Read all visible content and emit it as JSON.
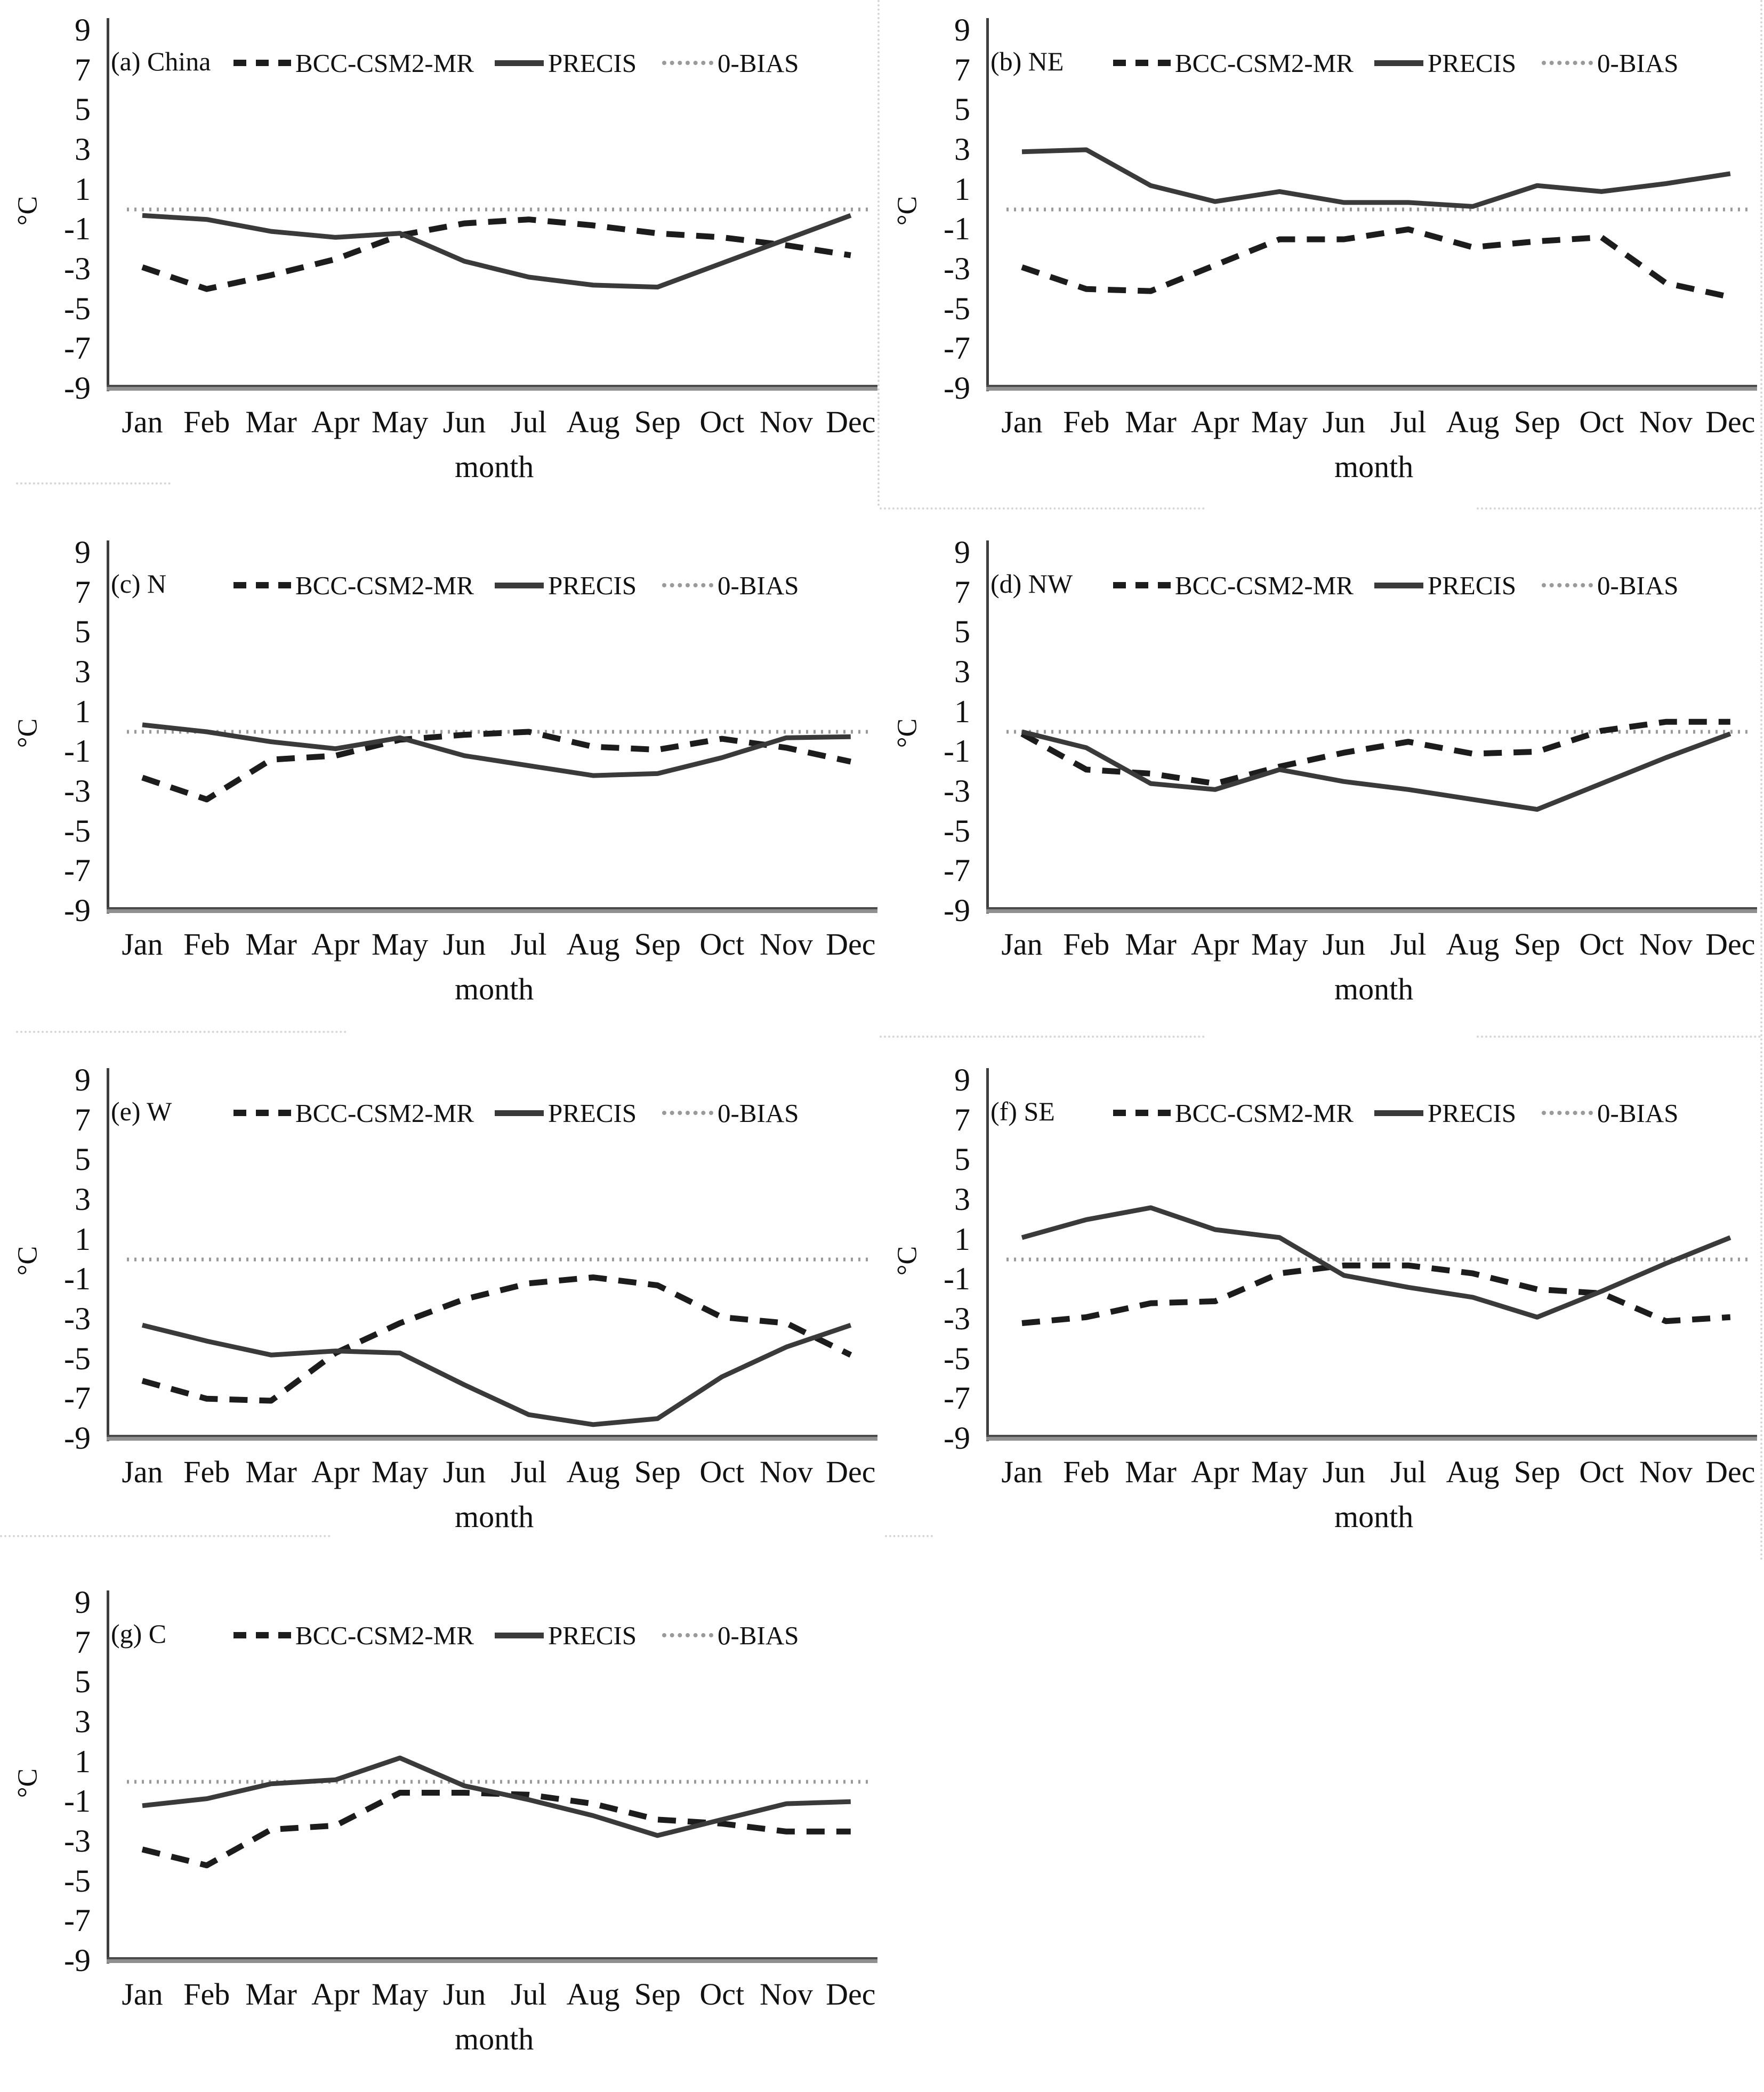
{
  "figure": {
    "ylabel": "°C",
    "xlabel": "month",
    "months": [
      "Jan",
      "Feb",
      "Mar",
      "Apr",
      "May",
      "Jun",
      "Jul",
      "Aug",
      "Sep",
      "Oct",
      "Nov",
      "Dec"
    ],
    "yticks": [
      9,
      7,
      5,
      3,
      1,
      -1,
      -3,
      -5,
      -7,
      -9
    ],
    "ylim": [
      -9,
      9
    ],
    "legend": [
      "BCC-CSM2-MR",
      "PRECIS",
      "0-BIAS"
    ],
    "colors": {
      "bcc_dashed": "#1c1c1c",
      "precis_solid": "#3a3a3a",
      "zero_dotted": "#9a9a9a",
      "axis": "#4a4a4a",
      "text": "#111111"
    }
  },
  "chart_data": [
    {
      "type": "line",
      "panel_label": "(a) China",
      "xlabel": "month",
      "ylabel": "°C",
      "ylim": [
        -9,
        9
      ],
      "categories": [
        "Jan",
        "Feb",
        "Mar",
        "Apr",
        "May",
        "Jun",
        "Jul",
        "Aug",
        "Sep",
        "Oct",
        "Nov",
        "Dec"
      ],
      "series": [
        {
          "name": "BCC-CSM2-MR",
          "style": "dashed",
          "values": [
            -2.9,
            -4.0,
            -3.3,
            -2.5,
            -1.3,
            -0.7,
            -0.5,
            -0.8,
            -1.2,
            -1.4,
            -1.8,
            -2.3
          ]
        },
        {
          "name": "PRECIS",
          "style": "solid",
          "values": [
            -0.3,
            -0.5,
            -1.1,
            -1.4,
            -1.2,
            -2.6,
            -3.4,
            -3.8,
            -3.9,
            -2.7,
            -1.5,
            -0.3
          ]
        },
        {
          "name": "0-BIAS",
          "style": "dotted",
          "values": [
            0,
            0,
            0,
            0,
            0,
            0,
            0,
            0,
            0,
            0,
            0,
            0
          ]
        }
      ]
    },
    {
      "type": "line",
      "panel_label": "(b) NE",
      "xlabel": "month",
      "ylabel": "°C",
      "ylim": [
        -9,
        9
      ],
      "categories": [
        "Jan",
        "Feb",
        "Mar",
        "Apr",
        "May",
        "Jun",
        "Jul",
        "Aug",
        "Sep",
        "Oct",
        "Nov",
        "Dec"
      ],
      "series": [
        {
          "name": "BCC-CSM2-MR",
          "style": "dashed",
          "values": [
            -2.9,
            -4.0,
            -4.1,
            -2.8,
            -1.5,
            -1.5,
            -1.0,
            -1.9,
            -1.6,
            -1.4,
            -3.7,
            -4.4
          ]
        },
        {
          "name": "PRECIS",
          "style": "solid",
          "values": [
            2.9,
            3.0,
            1.2,
            0.4,
            0.9,
            0.35,
            0.35,
            0.15,
            1.2,
            0.9,
            1.3,
            1.8
          ]
        },
        {
          "name": "0-BIAS",
          "style": "dotted",
          "values": [
            0,
            0,
            0,
            0,
            0,
            0,
            0,
            0,
            0,
            0,
            0,
            0
          ]
        }
      ]
    },
    {
      "type": "line",
      "panel_label": "(c) N",
      "xlabel": "month",
      "ylabel": "°C",
      "ylim": [
        -9,
        9
      ],
      "categories": [
        "Jan",
        "Feb",
        "Mar",
        "Apr",
        "May",
        "Jun",
        "Jul",
        "Aug",
        "Sep",
        "Oct",
        "Nov",
        "Dec"
      ],
      "series": [
        {
          "name": "BCC-CSM2-MR",
          "style": "dashed",
          "values": [
            -2.3,
            -3.4,
            -1.4,
            -1.2,
            -0.4,
            -0.15,
            0.0,
            -0.75,
            -0.9,
            -0.35,
            -0.8,
            -1.5
          ]
        },
        {
          "name": "PRECIS",
          "style": "solid",
          "values": [
            0.35,
            0.0,
            -0.5,
            -0.85,
            -0.3,
            -1.2,
            -1.7,
            -2.2,
            -2.1,
            -1.3,
            -0.3,
            -0.25
          ]
        },
        {
          "name": "0-BIAS",
          "style": "dotted",
          "values": [
            0,
            0,
            0,
            0,
            0,
            0,
            0,
            0,
            0,
            0,
            0,
            0
          ]
        }
      ]
    },
    {
      "type": "line",
      "panel_label": "(d) NW",
      "xlabel": "month",
      "ylabel": "°C",
      "ylim": [
        -9,
        9
      ],
      "categories": [
        "Jan",
        "Feb",
        "Mar",
        "Apr",
        "May",
        "Jun",
        "Jul",
        "Aug",
        "Sep",
        "Oct",
        "Nov",
        "Dec"
      ],
      "series": [
        {
          "name": "BCC-CSM2-MR",
          "style": "dashed",
          "values": [
            -0.1,
            -1.9,
            -2.1,
            -2.6,
            -1.75,
            -1.05,
            -0.5,
            -1.1,
            -1.0,
            0.05,
            0.5,
            0.5
          ]
        },
        {
          "name": "PRECIS",
          "style": "solid",
          "values": [
            0.0,
            -0.8,
            -2.6,
            -2.9,
            -1.9,
            -2.5,
            -2.9,
            -3.4,
            -3.9,
            -2.6,
            -1.3,
            -0.1
          ]
        },
        {
          "name": "0-BIAS",
          "style": "dotted",
          "values": [
            0,
            0,
            0,
            0,
            0,
            0,
            0,
            0,
            0,
            0,
            0,
            0
          ]
        }
      ]
    },
    {
      "type": "line",
      "panel_label": "(e) W",
      "xlabel": "month",
      "ylabel": "°C",
      "ylim": [
        -9,
        9
      ],
      "categories": [
        "Jan",
        "Feb",
        "Mar",
        "Apr",
        "May",
        "Jun",
        "Jul",
        "Aug",
        "Sep",
        "Oct",
        "Nov",
        "Dec"
      ],
      "series": [
        {
          "name": "BCC-CSM2-MR",
          "style": "dashed",
          "values": [
            -6.1,
            -7.0,
            -7.1,
            -4.7,
            -3.2,
            -2.0,
            -1.2,
            -0.9,
            -1.3,
            -2.9,
            -3.2,
            -4.8
          ]
        },
        {
          "name": "PRECIS",
          "style": "solid",
          "values": [
            -3.3,
            -4.1,
            -4.8,
            -4.6,
            -4.7,
            -6.3,
            -7.8,
            -8.3,
            -8.0,
            -5.9,
            -4.4,
            -3.3
          ]
        },
        {
          "name": "0-BIAS",
          "style": "dotted",
          "values": [
            0,
            0,
            0,
            0,
            0,
            0,
            0,
            0,
            0,
            0,
            0,
            0
          ]
        }
      ]
    },
    {
      "type": "line",
      "panel_label": "(f) SE",
      "xlabel": "month",
      "ylabel": "°C",
      "ylim": [
        -9,
        9
      ],
      "categories": [
        "Jan",
        "Feb",
        "Mar",
        "Apr",
        "May",
        "Jun",
        "Jul",
        "Aug",
        "Sep",
        "Oct",
        "Nov",
        "Dec"
      ],
      "series": [
        {
          "name": "BCC-CSM2-MR",
          "style": "dashed",
          "values": [
            -3.2,
            -2.9,
            -2.2,
            -2.1,
            -0.7,
            -0.3,
            -0.3,
            -0.7,
            -1.5,
            -1.7,
            -3.1,
            -2.9
          ]
        },
        {
          "name": "PRECIS",
          "style": "solid",
          "values": [
            1.1,
            2.0,
            2.6,
            1.5,
            1.1,
            -0.8,
            -1.4,
            -1.9,
            -2.9,
            -1.6,
            -0.2,
            1.1
          ]
        },
        {
          "name": "0-BIAS",
          "style": "dotted",
          "values": [
            0,
            0,
            0,
            0,
            0,
            0,
            0,
            0,
            0,
            0,
            0,
            0
          ]
        }
      ]
    },
    {
      "type": "line",
      "panel_label": "(g) C",
      "xlabel": "month",
      "ylabel": "°C",
      "ylim": [
        -9,
        9
      ],
      "categories": [
        "Jan",
        "Feb",
        "Mar",
        "Apr",
        "May",
        "Jun",
        "Jul",
        "Aug",
        "Sep",
        "Oct",
        "Nov",
        "Dec"
      ],
      "series": [
        {
          "name": "BCC-CSM2-MR",
          "style": "dashed",
          "values": [
            -3.4,
            -4.2,
            -2.4,
            -2.2,
            -0.55,
            -0.55,
            -0.65,
            -1.1,
            -1.9,
            -2.1,
            -2.5,
            -2.5
          ]
        },
        {
          "name": "PRECIS",
          "style": "solid",
          "values": [
            -1.2,
            -0.85,
            -0.1,
            0.1,
            1.2,
            -0.2,
            -0.9,
            -1.7,
            -2.7,
            -1.9,
            -1.1,
            -1.0
          ]
        },
        {
          "name": "0-BIAS",
          "style": "dotted",
          "values": [
            0,
            0,
            0,
            0,
            0,
            0,
            0,
            0,
            0,
            0,
            0,
            0
          ]
        }
      ]
    }
  ]
}
